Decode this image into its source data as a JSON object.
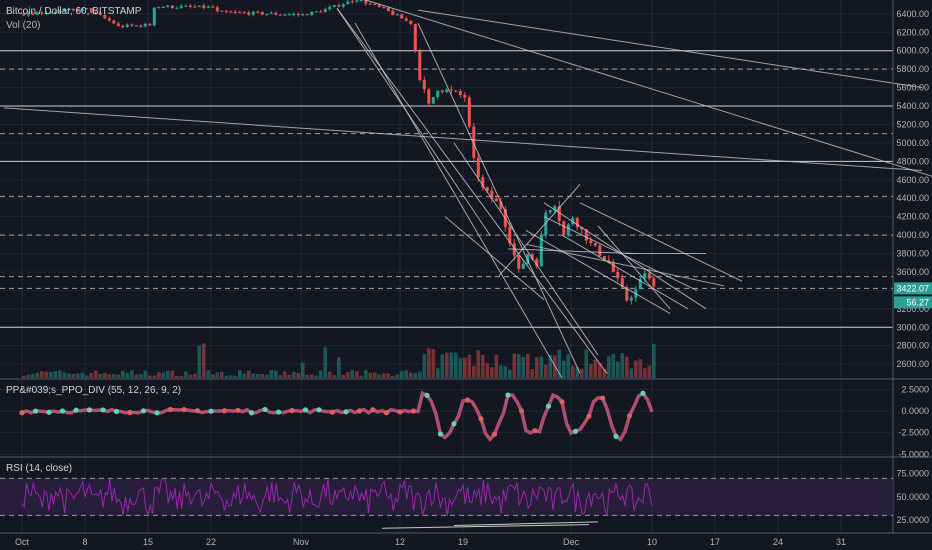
{
  "header": {
    "symbol_label": "Bitcoin / Dollar, 60, BITSTAMP",
    "volume_label": "Vol (20)"
  },
  "ppo_panel": {
    "label": "PP&#039;s_PPO_DIV (55, 12, 26, 9, 2)"
  },
  "rsi_panel": {
    "label": "RSI (14, close)"
  },
  "colors": {
    "background": "#131722",
    "grid": "#363a45",
    "candle_up": "#26a69a",
    "candle_down": "#ef5350",
    "ppo_up_dot": "#5dd1c6",
    "ppo_down_dot": "#e06060",
    "ppo_line": "#c0557a",
    "rsi_line": "#9c27b0",
    "rsi_band": "#2a1f3d",
    "trendline": "#c8c8c8",
    "price_tag": "#2f9e94"
  },
  "chart_data": [
    {
      "type": "candlestick",
      "panel": "price",
      "x_ticks": [
        "Oct",
        "8",
        "15",
        "22",
        "Nov",
        "12",
        "19",
        "Dec",
        "10",
        "17",
        "24",
        "31"
      ],
      "y_ticks": [
        2600,
        2800,
        3000,
        3200,
        3400,
        3600,
        3800,
        4000,
        4200,
        4400,
        4600,
        4800,
        5000,
        5200,
        5400,
        5600,
        5800,
        6000,
        6200,
        6400
      ],
      "ylim": [
        2450,
        6550
      ],
      "price_path": [
        {
          "x": "Oct 1",
          "y": 6400
        },
        {
          "x": "Oct 8",
          "y": 6450
        },
        {
          "x": "Oct 11",
          "y": 6300
        },
        {
          "x": "Oct 11",
          "y": 6260
        },
        {
          "x": "Oct 15",
          "y": 6280
        },
        {
          "x": "Oct 15",
          "y": 6480
        },
        {
          "x": "Oct 22",
          "y": 6470
        },
        {
          "x": "Oct 22",
          "y": 6420
        },
        {
          "x": "Nov 1",
          "y": 6390
        },
        {
          "x": "Nov 3",
          "y": 6430
        },
        {
          "x": "Nov 7",
          "y": 6560
        },
        {
          "x": "Nov 10",
          "y": 6450
        },
        {
          "x": "Nov 13",
          "y": 6300
        },
        {
          "x": "Nov 14",
          "y": 5700
        },
        {
          "x": "Nov 15",
          "y": 5400
        },
        {
          "x": "Nov 16",
          "y": 5600
        },
        {
          "x": "Nov 19",
          "y": 5500
        },
        {
          "x": "Nov 20",
          "y": 4800
        },
        {
          "x": "Nov 21",
          "y": 4500
        },
        {
          "x": "Nov 23",
          "y": 4300
        },
        {
          "x": "Nov 24",
          "y": 3950
        },
        {
          "x": "Nov 25",
          "y": 3600
        },
        {
          "x": "Nov 26",
          "y": 3800
        },
        {
          "x": "Nov 27",
          "y": 3700
        },
        {
          "x": "Nov 28",
          "y": 4250
        },
        {
          "x": "Nov 29",
          "y": 4350
        },
        {
          "x": "Nov 30",
          "y": 4000
        },
        {
          "x": "Dec 1",
          "y": 4200
        },
        {
          "x": "Dec 3",
          "y": 3900
        },
        {
          "x": "Dec 5",
          "y": 3700
        },
        {
          "x": "Dec 7",
          "y": 3300
        },
        {
          "x": "Dec 8",
          "y": 3400
        },
        {
          "x": "Dec 9",
          "y": 3600
        },
        {
          "x": "Dec 10",
          "y": 3422
        }
      ],
      "horizontal_levels_solid": [
        6000,
        5400,
        4800,
        3000
      ],
      "horizontal_levels_dashed": [
        5800,
        5100,
        4420,
        4000,
        3550,
        3422
      ],
      "last_price": "3422.07",
      "volume_tag": "56.27"
    },
    {
      "type": "line",
      "panel": "ppo",
      "name": "PP&#039;s_PPO_DIV (55, 12, 26, 9, 2)",
      "y_ticks": [
        "2.5000",
        "0.0000",
        "-2.5000",
        "-5.0000"
      ],
      "ylim": [
        -5.2,
        3.6
      ]
    },
    {
      "type": "line",
      "panel": "rsi",
      "name": "RSI (14, close)",
      "y_ticks": [
        "75.0000",
        "50.0000",
        "25.0000"
      ],
      "ylim": [
        12,
        92
      ],
      "band": [
        30,
        70
      ]
    }
  ]
}
